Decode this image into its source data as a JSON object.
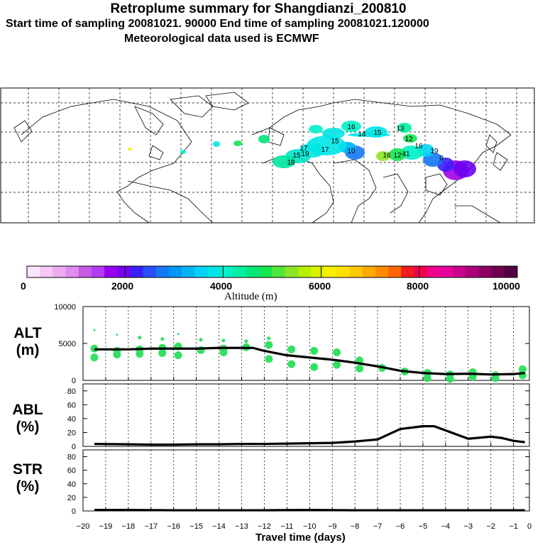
{
  "header": {
    "title": "Retroplume summary for Shangdianzi_200810",
    "sampling": "Start time of sampling 20081021. 90000     End time of sampling 20081021.120000",
    "met": "Meteorological data used is ECMWF"
  },
  "map": {
    "plume_labels": [
      "16",
      "15",
      "13",
      "12",
      "14",
      "10",
      "15",
      "17",
      "19",
      "18",
      "17",
      "15",
      "16",
      "12",
      "19",
      "16",
      "41",
      "0"
    ]
  },
  "colorbar": {
    "labels": [
      "0",
      "2000",
      "4000",
      "6000",
      "8000",
      "10000"
    ],
    "caption": "Altitude (m)",
    "colors": [
      "#fbe6fb",
      "#f5c8f5",
      "#eeaaf0",
      "#e08cee",
      "#c85ae6",
      "#b43cf0",
      "#9600f0",
      "#7800f0",
      "#3c1efa",
      "#2850fa",
      "#1478f5",
      "#0096f5",
      "#00b4f5",
      "#00d2f5",
      "#00e6e6",
      "#00f0c8",
      "#00f0a0",
      "#00e678",
      "#14e650",
      "#50e63c",
      "#8ce628",
      "#b4f000",
      "#dcf000",
      "#f5f000",
      "#ffe100",
      "#ffc800",
      "#ffaa00",
      "#ff8c00",
      "#ff6400",
      "#f01e1e",
      "#f00050",
      "#f0008c",
      "#e6009c",
      "#c8008c",
      "#aa0078",
      "#8c0064",
      "#6e0050",
      "#500040"
    ]
  },
  "panels": {
    "alt": {
      "label": "ALT\n(m)"
    },
    "abl": {
      "label": "ABL\n(%)"
    },
    "str": {
      "label": "STR\n(%)"
    },
    "xlabel": "Travel time (days)"
  },
  "chart_data": [
    {
      "type": "line",
      "title": "ALT",
      "ylabel": "ALT (m)",
      "ylim": [
        0,
        10000
      ],
      "yticks": [
        "0",
        "5000",
        "10000"
      ],
      "x": [
        -19.5,
        -19,
        -18,
        -17,
        -16,
        -15,
        -14,
        -13,
        -12.5,
        -12,
        -11,
        -10,
        -9,
        -8,
        -7,
        -6,
        -5,
        -4,
        -3,
        -2,
        -1,
        -0.5
      ],
      "mean": [
        4200,
        4200,
        4200,
        4300,
        4300,
        4300,
        4400,
        4400,
        4400,
        4000,
        3400,
        3100,
        2800,
        2400,
        1900,
        1300,
        1000,
        850,
        900,
        800,
        850,
        1000
      ],
      "scatter": [
        {
          "x": -19.5,
          "y": 4300
        },
        {
          "x": -19.5,
          "y": 3100
        },
        {
          "x": -19.5,
          "y": 6800
        },
        {
          "x": -18.5,
          "y": 4000
        },
        {
          "x": -18.5,
          "y": 3500
        },
        {
          "x": -18.5,
          "y": 6200
        },
        {
          "x": -17.5,
          "y": 3600
        },
        {
          "x": -17.5,
          "y": 4200
        },
        {
          "x": -17.5,
          "y": 5800
        },
        {
          "x": -16.5,
          "y": 3700
        },
        {
          "x": -16.5,
          "y": 4400
        },
        {
          "x": -16.5,
          "y": 5600
        },
        {
          "x": -15.8,
          "y": 4600
        },
        {
          "x": -15.8,
          "y": 3400
        },
        {
          "x": -15.8,
          "y": 6300
        },
        {
          "x": -14.8,
          "y": 4100
        },
        {
          "x": -14.8,
          "y": 5500
        },
        {
          "x": -13.8,
          "y": 4300
        },
        {
          "x": -13.8,
          "y": 3800
        },
        {
          "x": -13.8,
          "y": 5400
        },
        {
          "x": -12.8,
          "y": 4500
        },
        {
          "x": -12.8,
          "y": 5300
        },
        {
          "x": -11.8,
          "y": 4800
        },
        {
          "x": -11.8,
          "y": 2900
        },
        {
          "x": -11.8,
          "y": 5700
        },
        {
          "x": -10.8,
          "y": 4200
        },
        {
          "x": -10.8,
          "y": 2200
        },
        {
          "x": -9.8,
          "y": 4000
        },
        {
          "x": -9.8,
          "y": 1800
        },
        {
          "x": -8.8,
          "y": 3800
        },
        {
          "x": -8.8,
          "y": 2100
        },
        {
          "x": -7.8,
          "y": 2700
        },
        {
          "x": -7.8,
          "y": 1600
        },
        {
          "x": -6.8,
          "y": 1700
        },
        {
          "x": -5.8,
          "y": 1200
        },
        {
          "x": -4.8,
          "y": 1000
        },
        {
          "x": -4.8,
          "y": 300
        },
        {
          "x": -3.8,
          "y": 800
        },
        {
          "x": -3.8,
          "y": 200
        },
        {
          "x": -2.8,
          "y": 1100
        },
        {
          "x": -2.8,
          "y": 500
        },
        {
          "x": -1.8,
          "y": 700
        },
        {
          "x": -1.8,
          "y": 300
        },
        {
          "x": -0.6,
          "y": 1500
        },
        {
          "x": -0.6,
          "y": 700
        }
      ]
    },
    {
      "type": "line",
      "title": "ABL",
      "ylabel": "ABL (%)",
      "ylim": [
        0,
        90
      ],
      "yticks": [
        "0",
        "20",
        "40",
        "60",
        "80"
      ],
      "x": [
        -19.5,
        -18,
        -17,
        -16,
        -15,
        -14,
        -13,
        -12,
        -11,
        -10,
        -9,
        -8,
        -7,
        -6,
        -5,
        -4.5,
        -4,
        -3,
        -2,
        -1.5,
        -1,
        -0.5
      ],
      "y": [
        3.5,
        3,
        2.5,
        2.5,
        3,
        3,
        3.5,
        3.5,
        4,
        4.5,
        5,
        7,
        10,
        25,
        29,
        29,
        23,
        11,
        14,
        12,
        8,
        6
      ]
    },
    {
      "type": "line",
      "title": "STR",
      "ylabel": "STR (%)",
      "ylim": [
        0,
        90
      ],
      "yticks": [
        "0",
        "20",
        "40",
        "60",
        "80"
      ],
      "x": [
        -19.5,
        -18,
        -16,
        -14,
        -12,
        -10,
        -8,
        -6,
        -4,
        -2,
        -0.5
      ],
      "y": [
        1.5,
        1.5,
        1,
        1,
        1,
        1.5,
        1,
        1,
        1,
        1,
        1
      ]
    }
  ],
  "xaxis": {
    "xlim": [
      -20,
      -0.3
    ],
    "ticks": [
      -20,
      -19,
      -18,
      -17,
      -16,
      -15,
      -14,
      -13,
      -12,
      -11,
      -10,
      -9,
      -8,
      -7,
      -6,
      -5,
      -4,
      -3,
      -2,
      -1,
      0
    ],
    "tick_labels": [
      "−20",
      "−19",
      "−18",
      "−17",
      "−16",
      "−15",
      "−14",
      "−13",
      "−12",
      "−11",
      "−10",
      "−9",
      "−8",
      "−7",
      "−6",
      "−5",
      "−4",
      "−3",
      "−2",
      "−1",
      "0"
    ]
  }
}
